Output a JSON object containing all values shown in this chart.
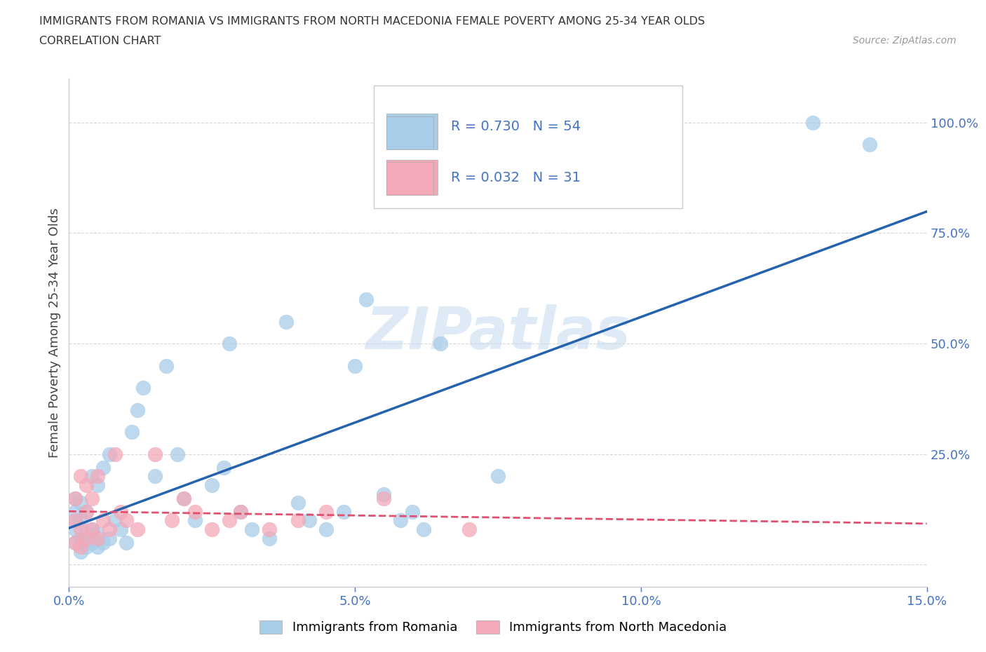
{
  "title_line1": "IMMIGRANTS FROM ROMANIA VS IMMIGRANTS FROM NORTH MACEDONIA FEMALE POVERTY AMONG 25-34 YEAR OLDS",
  "title_line2": "CORRELATION CHART",
  "source_text": "Source: ZipAtlas.com",
  "ylabel": "Female Poverty Among 25-34 Year Olds",
  "xlim": [
    0.0,
    0.15
  ],
  "ylim": [
    -0.05,
    1.1
  ],
  "xticks": [
    0.0,
    0.05,
    0.1,
    0.15
  ],
  "xticklabels": [
    "0.0%",
    "5.0%",
    "10.0%",
    "15.0%"
  ],
  "right_yticks": [
    0.25,
    0.5,
    0.75,
    1.0
  ],
  "right_yticklabels": [
    "25.0%",
    "50.0%",
    "75.0%",
    "100.0%"
  ],
  "romania_color": "#a8cde8",
  "north_mac_color": "#f4a8b8",
  "romania_R": 0.73,
  "romania_N": 54,
  "north_mac_R": 0.032,
  "north_mac_N": 31,
  "romania_line_color": "#2563ae",
  "north_mac_line_color": "#e05070",
  "background_color": "#ffffff",
  "grid_color": "#d8d8d8",
  "watermark_color": "#c8ddf0",
  "title_color": "#333333",
  "axis_label_color": "#444444",
  "tick_color": "#4472c4",
  "romania_scatter_x": [
    0.001,
    0.001,
    0.001,
    0.001,
    0.001,
    0.002,
    0.002,
    0.002,
    0.002,
    0.003,
    0.003,
    0.003,
    0.004,
    0.004,
    0.004,
    0.005,
    0.005,
    0.005,
    0.006,
    0.006,
    0.007,
    0.007,
    0.008,
    0.009,
    0.01,
    0.011,
    0.012,
    0.013,
    0.015,
    0.017,
    0.019,
    0.02,
    0.022,
    0.025,
    0.027,
    0.028,
    0.03,
    0.032,
    0.035,
    0.038,
    0.04,
    0.042,
    0.045,
    0.048,
    0.05,
    0.052,
    0.055,
    0.058,
    0.06,
    0.062,
    0.065,
    0.075,
    0.13,
    0.14
  ],
  "romania_scatter_y": [
    0.05,
    0.08,
    0.1,
    0.12,
    0.15,
    0.03,
    0.06,
    0.1,
    0.14,
    0.04,
    0.07,
    0.12,
    0.05,
    0.08,
    0.2,
    0.04,
    0.07,
    0.18,
    0.05,
    0.22,
    0.06,
    0.25,
    0.1,
    0.08,
    0.05,
    0.3,
    0.35,
    0.4,
    0.2,
    0.45,
    0.25,
    0.15,
    0.1,
    0.18,
    0.22,
    0.5,
    0.12,
    0.08,
    0.06,
    0.55,
    0.14,
    0.1,
    0.08,
    0.12,
    0.45,
    0.6,
    0.16,
    0.1,
    0.12,
    0.08,
    0.5,
    0.2,
    1.0,
    0.95
  ],
  "north_mac_scatter_x": [
    0.001,
    0.001,
    0.001,
    0.002,
    0.002,
    0.002,
    0.003,
    0.003,
    0.003,
    0.004,
    0.004,
    0.005,
    0.005,
    0.006,
    0.007,
    0.008,
    0.009,
    0.01,
    0.012,
    0.015,
    0.018,
    0.02,
    0.022,
    0.025,
    0.028,
    0.03,
    0.035,
    0.04,
    0.045,
    0.055,
    0.07
  ],
  "north_mac_scatter_y": [
    0.05,
    0.1,
    0.15,
    0.04,
    0.08,
    0.2,
    0.06,
    0.12,
    0.18,
    0.08,
    0.15,
    0.06,
    0.2,
    0.1,
    0.08,
    0.25,
    0.12,
    0.1,
    0.08,
    0.25,
    0.1,
    0.15,
    0.12,
    0.08,
    0.1,
    0.12,
    0.08,
    0.1,
    0.12,
    0.15,
    0.08
  ]
}
